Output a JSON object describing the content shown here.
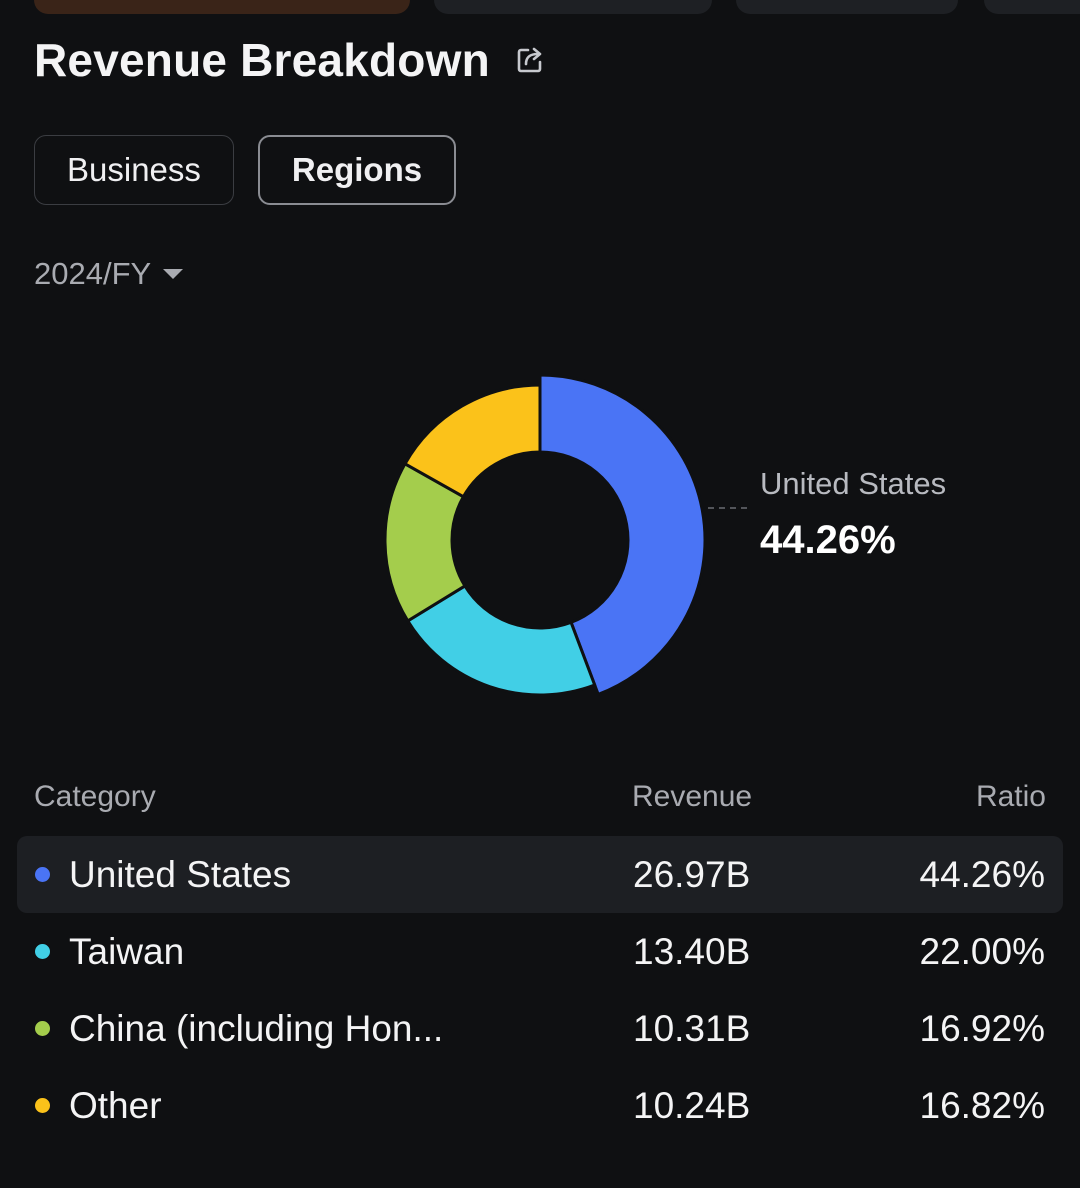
{
  "header": {
    "title": "Revenue Breakdown",
    "share_icon": "share-icon"
  },
  "segments": {
    "business_label": "Business",
    "regions_label": "Regions",
    "active": "Regions"
  },
  "period": {
    "label": "2024/FY",
    "icon": "caret-down-icon"
  },
  "callout": {
    "label": "United States",
    "value": "44.26%"
  },
  "table": {
    "headers": {
      "category": "Category",
      "revenue": "Revenue",
      "ratio": "Ratio"
    },
    "rows": [
      {
        "name": "United States",
        "revenue": "26.97B",
        "ratio": "44.26%",
        "color": "#4a74f5"
      },
      {
        "name": "Taiwan",
        "revenue": "13.40B",
        "ratio": "22.00%",
        "color": "#41cfe6"
      },
      {
        "name": "China (including Hon...",
        "revenue": "10.31B",
        "ratio": "16.92%",
        "color": "#a4cd4c"
      },
      {
        "name": "Other",
        "revenue": "10.24B",
        "ratio": "16.82%",
        "color": "#fbc21a"
      }
    ]
  },
  "chart_data": {
    "type": "pie",
    "categories": [
      "United States",
      "Taiwan",
      "China (including Hon...",
      "Other"
    ],
    "values": [
      44.26,
      22.0,
      16.92,
      16.82
    ],
    "revenue": [
      "26.97B",
      "13.40B",
      "10.31B",
      "10.24B"
    ],
    "colors": [
      "#4a74f5",
      "#41cfe6",
      "#a4cd4c",
      "#fbc21a"
    ],
    "highlighted": "United States",
    "title": ""
  }
}
